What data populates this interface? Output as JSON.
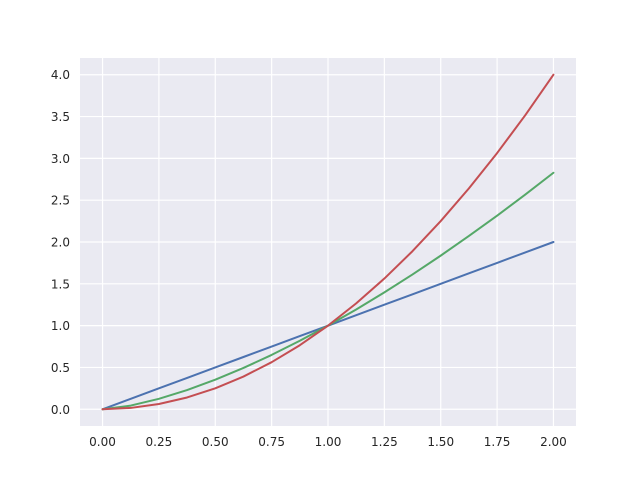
{
  "chart_data": {
    "type": "line",
    "title": "",
    "xlabel": "",
    "ylabel": "",
    "xlim": [
      -0.1,
      2.1
    ],
    "ylim": [
      -0.2,
      4.2
    ],
    "grid": true,
    "x_ticks": [
      0.0,
      0.25,
      0.5,
      0.75,
      1.0,
      1.25,
      1.5,
      1.75,
      2.0
    ],
    "x_tick_labels": [
      "0.00",
      "0.25",
      "0.50",
      "0.75",
      "1.00",
      "1.25",
      "1.50",
      "1.75",
      "2.00"
    ],
    "y_ticks": [
      0.0,
      0.5,
      1.0,
      1.5,
      2.0,
      2.5,
      3.0,
      3.5,
      4.0
    ],
    "y_tick_labels": [
      "0.0",
      "0.5",
      "1.0",
      "1.5",
      "2.0",
      "2.5",
      "3.0",
      "3.5",
      "4.0"
    ],
    "x": [
      0.0,
      0.125,
      0.25,
      0.375,
      0.5,
      0.625,
      0.75,
      0.875,
      1.0,
      1.125,
      1.25,
      1.375,
      1.5,
      1.625,
      1.75,
      1.875,
      2.0
    ],
    "series": [
      {
        "color": "#4c72b0",
        "values": [
          0.0,
          0.125,
          0.25,
          0.375,
          0.5,
          0.625,
          0.75,
          0.875,
          1.0,
          1.125,
          1.25,
          1.375,
          1.5,
          1.625,
          1.75,
          1.875,
          2.0
        ]
      },
      {
        "color": "#55a868",
        "values": [
          0.0,
          0.044,
          0.125,
          0.23,
          0.354,
          0.494,
          0.65,
          0.819,
          1.0,
          1.193,
          1.398,
          1.612,
          1.837,
          2.072,
          2.315,
          2.567,
          2.828
        ]
      },
      {
        "color": "#c44e52",
        "values": [
          0.0,
          0.016,
          0.063,
          0.141,
          0.25,
          0.391,
          0.563,
          0.766,
          1.0,
          1.266,
          1.563,
          1.891,
          2.25,
          2.641,
          3.063,
          3.516,
          4.0
        ]
      }
    ],
    "colors": {
      "plot_background": "#eaeaf2",
      "grid": "#ffffff",
      "tick_text": "#262626"
    }
  }
}
